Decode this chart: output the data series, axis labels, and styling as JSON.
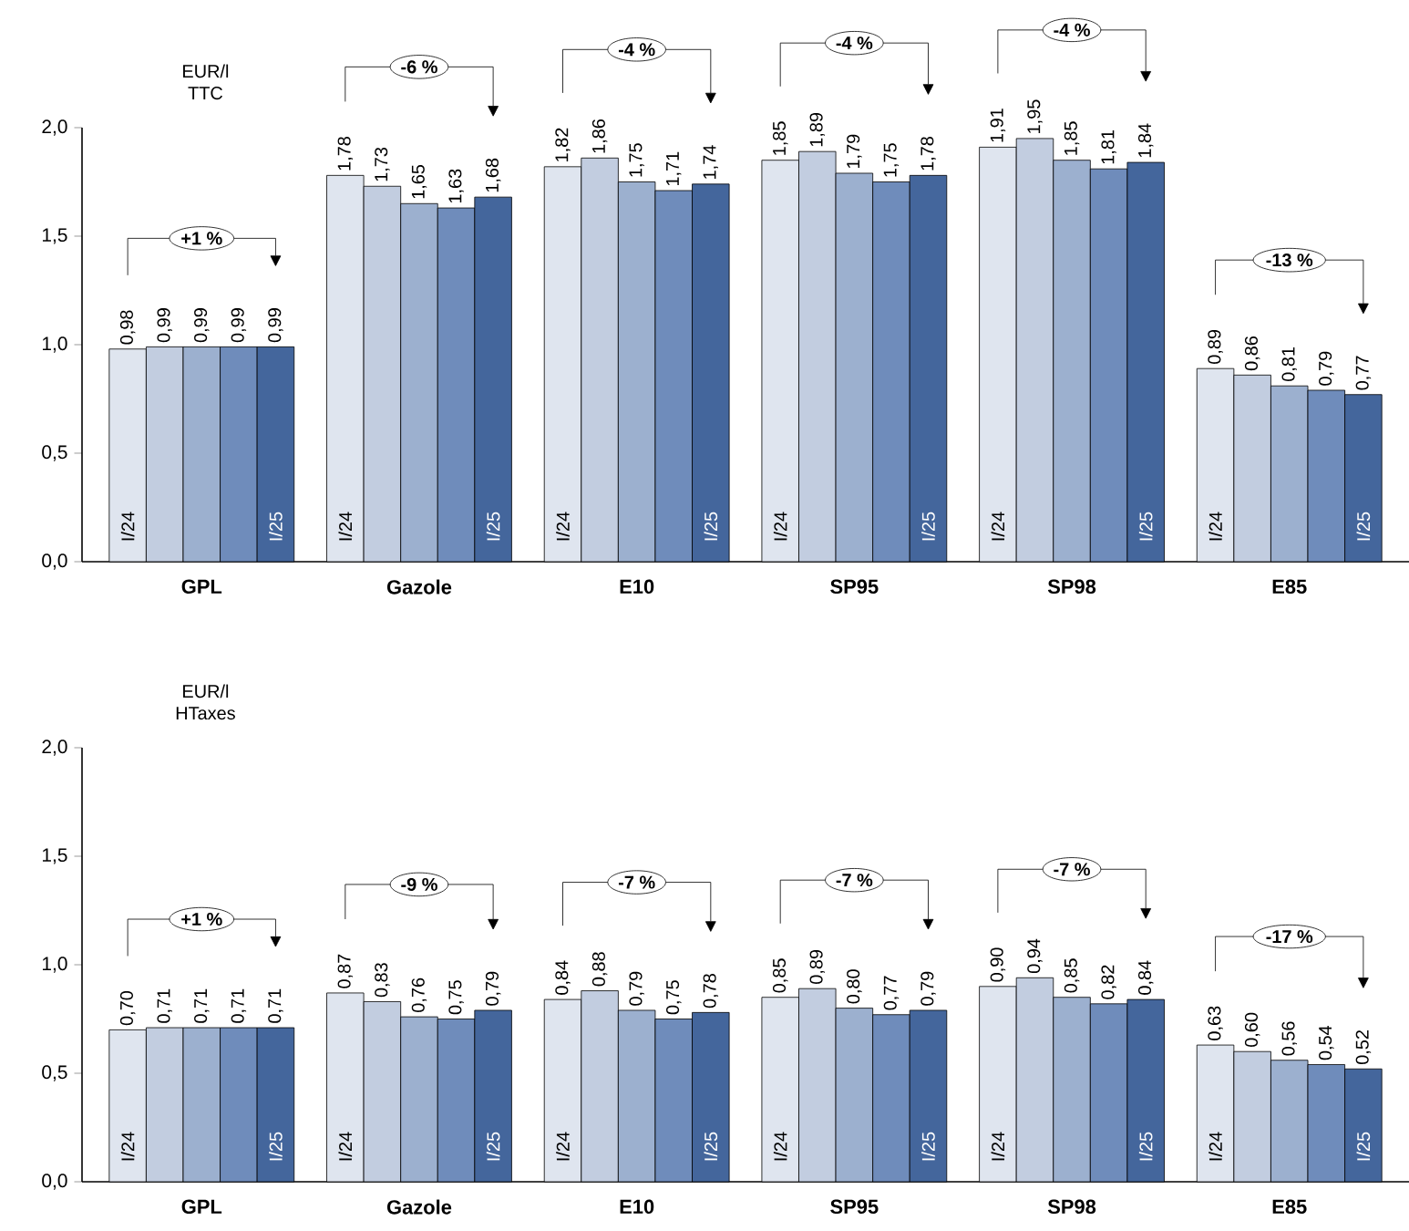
{
  "chart_data": [
    {
      "type": "bar",
      "ylabel": "EUR/l TTC",
      "categories": [
        "GPL",
        "Gazole",
        "E10",
        "SP95",
        "SP98",
        "E85"
      ],
      "ylim": [
        0,
        2
      ],
      "yticks": [
        {
          "value": 0,
          "label": "0,0"
        },
        {
          "value": 0.5,
          "label": "0,5"
        },
        {
          "value": 1,
          "label": "1,0"
        },
        {
          "value": 1.5,
          "label": "1,5"
        },
        {
          "value": 2,
          "label": "2,0"
        }
      ],
      "series": [
        {
          "name": "I/24",
          "color": "#dfe5ef",
          "values": [
            0.98,
            1.78,
            1.82,
            1.85,
            1.91,
            0.89
          ],
          "value_labels": [
            "0,98",
            "1,78",
            "1,82",
            "1,85",
            "1,91",
            "0,89"
          ]
        },
        {
          "color": "#c2cde0",
          "values": [
            0.99,
            1.73,
            1.86,
            1.89,
            1.95,
            0.86
          ],
          "value_labels": [
            "0,99",
            "1,73",
            "1,86",
            "1,89",
            "1,95",
            "0,86"
          ]
        },
        {
          "color": "#9cb0cf",
          "values": [
            0.99,
            1.65,
            1.75,
            1.79,
            1.85,
            0.81
          ],
          "value_labels": [
            "0,99",
            "1,65",
            "1,75",
            "1,79",
            "1,85",
            "0,81"
          ]
        },
        {
          "color": "#6f8cbb",
          "values": [
            0.99,
            1.63,
            1.71,
            1.75,
            1.81,
            0.79
          ],
          "value_labels": [
            "0,99",
            "1,63",
            "1,71",
            "1,75",
            "1,81",
            "0,79"
          ]
        },
        {
          "name": "I/25",
          "color": "#44669c",
          "values": [
            0.99,
            1.68,
            1.74,
            1.78,
            1.84,
            0.77
          ],
          "value_labels": [
            "0,99",
            "1,68",
            "1,74",
            "1,78",
            "1,84",
            "0,77"
          ]
        }
      ],
      "annotations": [
        "+1 %",
        "-6 %",
        "-4 %",
        "-4 %",
        "-4 %",
        "-13 %"
      ]
    },
    {
      "type": "bar",
      "ylabel": "EUR/l HTaxes",
      "categories": [
        "GPL",
        "Gazole",
        "E10",
        "SP95",
        "SP98",
        "E85"
      ],
      "ylim": [
        0,
        2
      ],
      "yticks": [
        {
          "value": 0,
          "label": "0,0"
        },
        {
          "value": 0.5,
          "label": "0,5"
        },
        {
          "value": 1,
          "label": "1,0"
        },
        {
          "value": 1.5,
          "label": "1,5"
        },
        {
          "value": 2,
          "label": "2,0"
        }
      ],
      "series": [
        {
          "name": "I/24",
          "color": "#dfe5ef",
          "values": [
            0.7,
            0.87,
            0.84,
            0.85,
            0.9,
            0.63
          ],
          "value_labels": [
            "0,70",
            "0,87",
            "0,84",
            "0,85",
            "0,90",
            "0,63"
          ]
        },
        {
          "color": "#c2cde0",
          "values": [
            0.71,
            0.83,
            0.88,
            0.89,
            0.94,
            0.6
          ],
          "value_labels": [
            "0,71",
            "0,83",
            "0,88",
            "0,89",
            "0,94",
            "0,60"
          ]
        },
        {
          "color": "#9cb0cf",
          "values": [
            0.71,
            0.76,
            0.79,
            0.8,
            0.85,
            0.56
          ],
          "value_labels": [
            "0,71",
            "0,76",
            "0,79",
            "0,80",
            "0,85",
            "0,56"
          ]
        },
        {
          "color": "#6f8cbb",
          "values": [
            0.71,
            0.75,
            0.75,
            0.77,
            0.82,
            0.54
          ],
          "value_labels": [
            "0,71",
            "0,75",
            "0,75",
            "0,77",
            "0,82",
            "0,54"
          ]
        },
        {
          "name": "I/25",
          "color": "#44669c",
          "values": [
            0.71,
            0.79,
            0.78,
            0.79,
            0.84,
            0.52
          ],
          "value_labels": [
            "0,71",
            "0,79",
            "0,78",
            "0,79",
            "0,84",
            "0,52"
          ]
        }
      ],
      "annotations": [
        "+1 %",
        "-9 %",
        "-7 %",
        "-7 %",
        "-7 %",
        "-17 %"
      ]
    }
  ]
}
